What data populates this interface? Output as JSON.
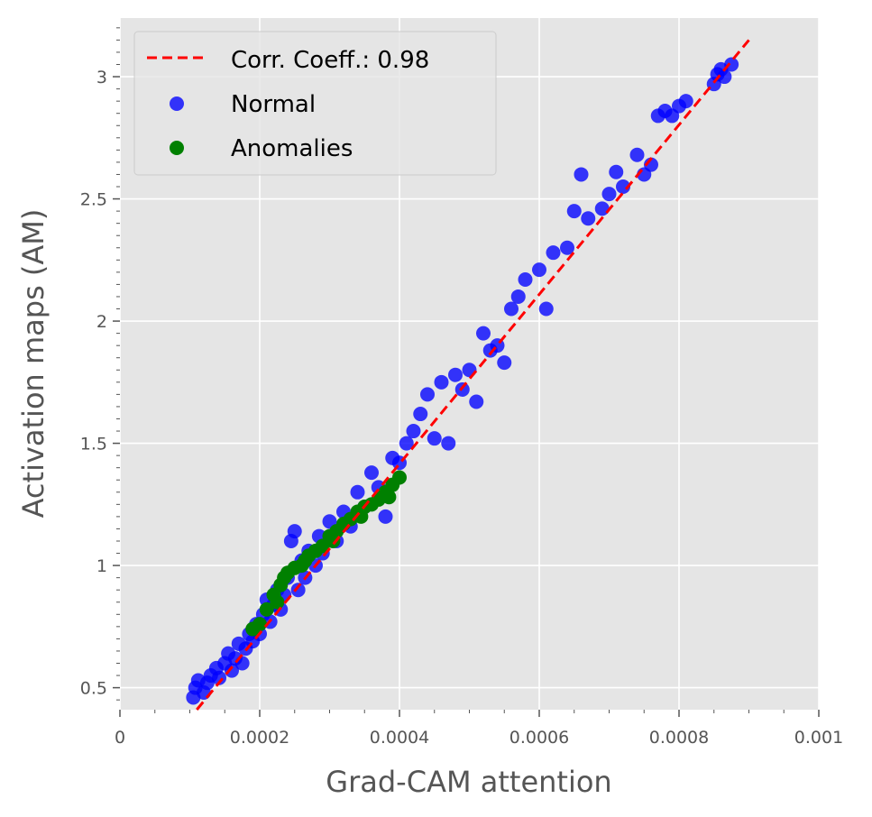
{
  "chart_data": {
    "type": "scatter",
    "title": "",
    "xlabel": "Grad-CAM attention",
    "ylabel": "Activation maps (AM)",
    "xlim": [
      0,
      0.001
    ],
    "ylim": [
      0.41,
      3.24
    ],
    "x_ticks": [
      0,
      0.0002,
      0.0004,
      0.0006,
      0.0008,
      0.001
    ],
    "x_tick_labels": [
      "0",
      "0.0002",
      "0.0004",
      "0.0006",
      "0.0008",
      "0.001"
    ],
    "y_ticks": [
      0.5,
      1,
      1.5,
      2,
      2.5,
      3
    ],
    "y_tick_labels": [
      "0.5",
      "1",
      "1.5",
      "2",
      "2.5",
      "3"
    ],
    "grid": true,
    "legend_position": "top-left",
    "legend": [
      "Corr. Coeff.: 0.98",
      "Normal",
      "Anomalies"
    ],
    "trend_line": {
      "label": "Corr. Coeff.: 0.98",
      "x": [
        0.00011,
        0.0009
      ],
      "y": [
        0.41,
        3.15
      ],
      "color": "#ff0000",
      "style": "dashed"
    },
    "series": [
      {
        "name": "Normal",
        "color": "#0000ff",
        "points": [
          [
            0.000105,
            0.46
          ],
          [
            0.000108,
            0.5
          ],
          [
            0.000112,
            0.53
          ],
          [
            0.00012,
            0.48
          ],
          [
            0.000125,
            0.52
          ],
          [
            0.00013,
            0.55
          ],
          [
            0.000138,
            0.58
          ],
          [
            0.000142,
            0.54
          ],
          [
            0.00015,
            0.6
          ],
          [
            0.000155,
            0.64
          ],
          [
            0.00016,
            0.57
          ],
          [
            0.000165,
            0.62
          ],
          [
            0.00017,
            0.68
          ],
          [
            0.000175,
            0.6
          ],
          [
            0.00018,
            0.66
          ],
          [
            0.000185,
            0.72
          ],
          [
            0.00019,
            0.69
          ],
          [
            0.000195,
            0.76
          ],
          [
            0.0002,
            0.72
          ],
          [
            0.000205,
            0.8
          ],
          [
            0.00021,
            0.86
          ],
          [
            0.000215,
            0.77
          ],
          [
            0.00022,
            0.84
          ],
          [
            0.000225,
            0.9
          ],
          [
            0.00023,
            0.82
          ],
          [
            0.000235,
            0.88
          ],
          [
            0.00024,
            0.95
          ],
          [
            0.000245,
            1.1
          ],
          [
            0.00025,
            1.14
          ],
          [
            0.000255,
            0.9
          ],
          [
            0.00026,
            1.02
          ],
          [
            0.000265,
            0.95
          ],
          [
            0.00027,
            1.06
          ],
          [
            0.00028,
            1.0
          ],
          [
            0.000285,
            1.12
          ],
          [
            0.00029,
            1.05
          ],
          [
            0.0003,
            1.18
          ],
          [
            0.00031,
            1.1
          ],
          [
            0.00032,
            1.22
          ],
          [
            0.00033,
            1.16
          ],
          [
            0.00034,
            1.3
          ],
          [
            0.00035,
            1.24
          ],
          [
            0.00036,
            1.38
          ],
          [
            0.00037,
            1.32
          ],
          [
            0.00038,
            1.2
          ],
          [
            0.00039,
            1.44
          ],
          [
            0.0004,
            1.42
          ],
          [
            0.00041,
            1.5
          ],
          [
            0.00042,
            1.55
          ],
          [
            0.00043,
            1.62
          ],
          [
            0.00044,
            1.7
          ],
          [
            0.00045,
            1.52
          ],
          [
            0.00046,
            1.75
          ],
          [
            0.00047,
            1.5
          ],
          [
            0.00048,
            1.78
          ],
          [
            0.00049,
            1.72
          ],
          [
            0.0005,
            1.8
          ],
          [
            0.00051,
            1.67
          ],
          [
            0.00052,
            1.95
          ],
          [
            0.00053,
            1.88
          ],
          [
            0.00054,
            1.9
          ],
          [
            0.00055,
            1.83
          ],
          [
            0.00056,
            2.05
          ],
          [
            0.00057,
            2.1
          ],
          [
            0.00058,
            2.17
          ],
          [
            0.0006,
            2.21
          ],
          [
            0.00062,
            2.28
          ],
          [
            0.00061,
            2.05
          ],
          [
            0.00064,
            2.3
          ],
          [
            0.00065,
            2.45
          ],
          [
            0.00066,
            2.6
          ],
          [
            0.00067,
            2.42
          ],
          [
            0.00069,
            2.46
          ],
          [
            0.0007,
            2.52
          ],
          [
            0.00071,
            2.61
          ],
          [
            0.00072,
            2.55
          ],
          [
            0.00074,
            2.68
          ],
          [
            0.00075,
            2.6
          ],
          [
            0.00076,
            2.64
          ],
          [
            0.00077,
            2.84
          ],
          [
            0.00078,
            2.86
          ],
          [
            0.00079,
            2.84
          ],
          [
            0.0008,
            2.88
          ],
          [
            0.00081,
            2.9
          ],
          [
            0.00085,
            2.97
          ],
          [
            0.000855,
            3.01
          ],
          [
            0.00086,
            3.03
          ],
          [
            0.000865,
            3.0
          ],
          [
            0.000875,
            3.05
          ]
        ]
      },
      {
        "name": "Anomalies",
        "color": "#008000",
        "points": [
          [
            0.00019,
            0.74
          ],
          [
            0.0002,
            0.76
          ],
          [
            0.00021,
            0.82
          ],
          [
            0.00022,
            0.88
          ],
          [
            0.00023,
            0.92
          ],
          [
            0.000235,
            0.95
          ],
          [
            0.00024,
            0.97
          ],
          [
            0.00025,
            0.99
          ],
          [
            0.00026,
            1.0
          ],
          [
            0.00027,
            1.04
          ],
          [
            0.00028,
            1.06
          ],
          [
            0.00029,
            1.08
          ],
          [
            0.0003,
            1.12
          ],
          [
            0.00031,
            1.14
          ],
          [
            0.00032,
            1.17
          ],
          [
            0.00033,
            1.19
          ],
          [
            0.00034,
            1.22
          ],
          [
            0.00035,
            1.24
          ],
          [
            0.00036,
            1.25
          ],
          [
            0.00037,
            1.27
          ],
          [
            0.00038,
            1.3
          ],
          [
            0.00039,
            1.33
          ],
          [
            0.0004,
            1.36
          ],
          [
            0.000225,
            0.85
          ],
          [
            0.000265,
            1.02
          ],
          [
            0.000305,
            1.1
          ],
          [
            0.000345,
            1.2
          ],
          [
            0.000385,
            1.28
          ]
        ]
      }
    ]
  }
}
